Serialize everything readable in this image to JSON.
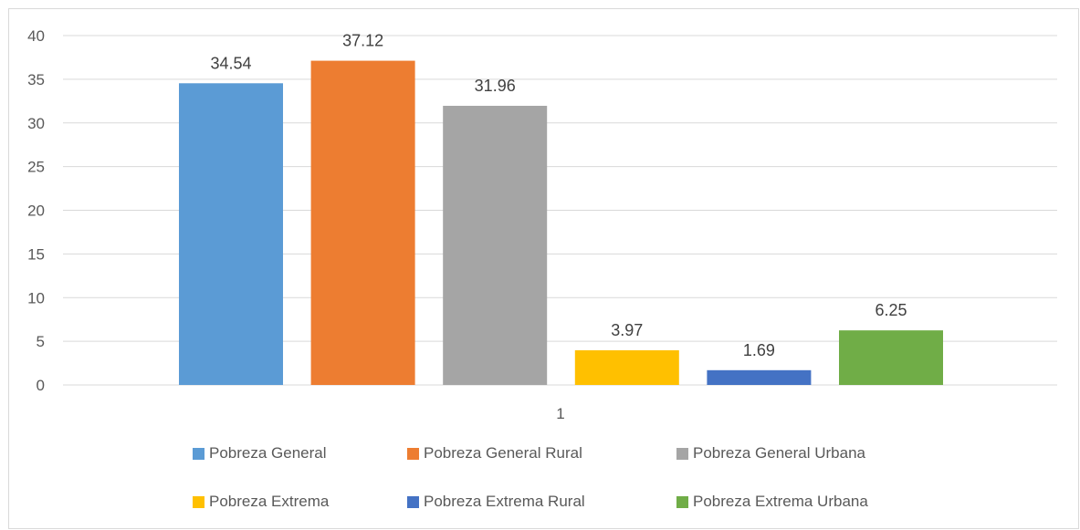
{
  "chart_data": {
    "type": "bar",
    "categories": [
      "1"
    ],
    "series": [
      {
        "name": "Pobreza General",
        "values": [
          34.54
        ],
        "color": "#5b9bd5"
      },
      {
        "name": "Pobreza General Rural",
        "values": [
          37.12
        ],
        "color": "#ed7d31"
      },
      {
        "name": "Pobreza General Urbana",
        "values": [
          31.96
        ],
        "color": "#a5a5a5"
      },
      {
        "name": "Pobreza Extrema",
        "values": [
          3.97
        ],
        "color": "#ffc000"
      },
      {
        "name": "Pobreza Extrema Rural",
        "values": [
          1.69
        ],
        "color": "#4472c4"
      },
      {
        "name": "Pobreza Extrema Urbana",
        "values": [
          6.25
        ],
        "color": "#70ad47"
      }
    ],
    "data_labels": [
      "34.54",
      "37.12",
      "31.96",
      "3.97",
      "1.69",
      "6.25"
    ],
    "ylim": [
      0,
      40
    ],
    "yticks": [
      "0",
      "5",
      "10",
      "15",
      "20",
      "25",
      "30",
      "35",
      "40"
    ],
    "grid": true,
    "legend_position": "bottom",
    "title": "",
    "xlabel": "",
    "ylabel": ""
  }
}
